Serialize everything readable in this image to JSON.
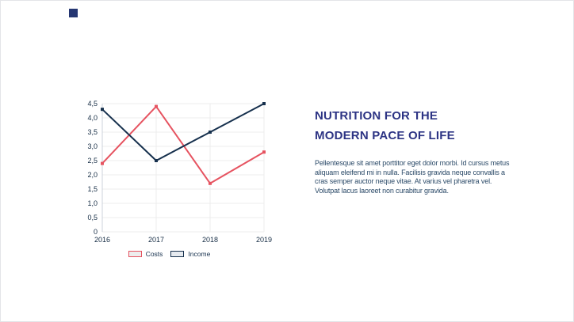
{
  "page": {
    "background": "#ffffff",
    "border_color": "#e3e5e8",
    "logo_color": "#253672"
  },
  "content": {
    "title_line1": "NUTRITION FOR THE",
    "title_line2": "MODERN PACE OF LIFE",
    "title_color": "#2d3484",
    "paragraph_text": "Pellentesque sit amet porttitor eget dolor morbi. Id cursus metus aliquam eleifend mi in nulla. Facilisis gravida neque convallis a cras semper auctor neque vitae. At varius vel pharetra vel. Volutpat lacus laoreet non curabitur gravida.",
    "paragraph_lines": [
      "Pellentesque sit amet porttitor eget dolor morbi. Id cursus metus",
      "aliquam eleifend mi in nulla. Facilisis gravida neque convallis a",
      "cras semper auctor neque vitae. At varius vel pharetra vel.",
      "Volutpat lacus laoreet non curabitur gravida."
    ],
    "paragraph_color": "#2b4a68"
  },
  "chart_data": {
    "type": "line",
    "categories": [
      "2016",
      "2017",
      "2018",
      "2019"
    ],
    "series": [
      {
        "name": "Costs",
        "color": "#e65360",
        "legend_fill": "#ededed",
        "values": [
          2.4,
          4.4,
          1.7,
          2.8
        ]
      },
      {
        "name": "Income",
        "color": "#16304d",
        "legend_fill": "#e6eaef",
        "values": [
          4.3,
          2.5,
          3.5,
          4.5
        ]
      }
    ],
    "ylim": [
      0,
      4.5
    ],
    "ytick_step": 0.5,
    "ytick_labels": [
      "0",
      "0,5",
      "1,0",
      "1,5",
      "2,0",
      "2,5",
      "3,0",
      "3,5",
      "4,0",
      "4,5"
    ],
    "xlabel": "",
    "ylabel": "",
    "grid": true,
    "grid_color": "#ececec",
    "axis_color": "#ccd3db",
    "tick_label_color": "#152c44",
    "legend_position": "bottom"
  }
}
